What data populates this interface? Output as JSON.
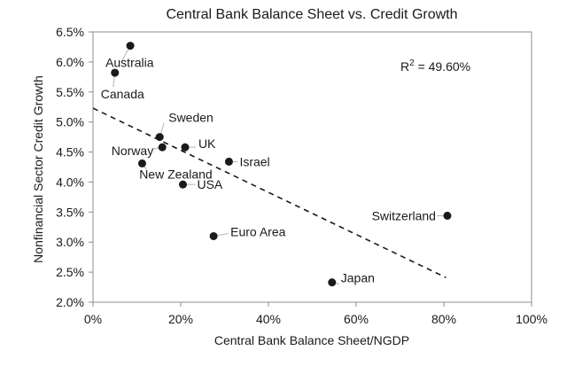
{
  "chart_data": {
    "type": "scatter",
    "title": "Central Bank Balance Sheet vs. Credit Growth",
    "xlabel": "Central Bank Balance Sheet/NGDP",
    "ylabel": "Nonfinancial Sector Credit Growth",
    "xlim": [
      0,
      100
    ],
    "ylim": [
      2.0,
      6.5
    ],
    "x_ticks": [
      0,
      20,
      40,
      60,
      80,
      100
    ],
    "y_ticks": [
      2.0,
      2.5,
      3.0,
      3.5,
      4.0,
      4.5,
      5.0,
      5.5,
      6.0,
      6.5
    ],
    "x_tick_labels": [
      "0%",
      "20%",
      "40%",
      "60%",
      "80%",
      "100%"
    ],
    "y_tick_labels": [
      "2.0%",
      "2.5%",
      "3.0%",
      "3.5%",
      "4.0%",
      "4.5%",
      "5.0%",
      "5.5%",
      "6.0%",
      "6.5%"
    ],
    "grid": false,
    "points": [
      {
        "label": "Australia",
        "x": 8.5,
        "y": 6.27
      },
      {
        "label": "Canada",
        "x": 5.0,
        "y": 5.82
      },
      {
        "label": "Sweden",
        "x": 15.2,
        "y": 4.75
      },
      {
        "label": "Norway",
        "x": 15.8,
        "y": 4.58
      },
      {
        "label": "UK",
        "x": 21.0,
        "y": 4.58
      },
      {
        "label": "Israel",
        "x": 31.0,
        "y": 4.34
      },
      {
        "label": "New Zealand",
        "x": 11.2,
        "y": 4.31
      },
      {
        "label": "USA",
        "x": 20.5,
        "y": 3.96
      },
      {
        "label": "Switzerland",
        "x": 80.8,
        "y": 3.44
      },
      {
        "label": "Euro Area",
        "x": 27.5,
        "y": 3.1
      },
      {
        "label": "Japan",
        "x": 54.5,
        "y": 2.33
      }
    ],
    "trendline": {
      "style": "dashed",
      "x": [
        0,
        80.5
      ],
      "y": [
        5.23,
        2.41
      ]
    },
    "annotation": {
      "prefix": "R",
      "superscript": "2",
      "text": " = 49.60%"
    }
  }
}
